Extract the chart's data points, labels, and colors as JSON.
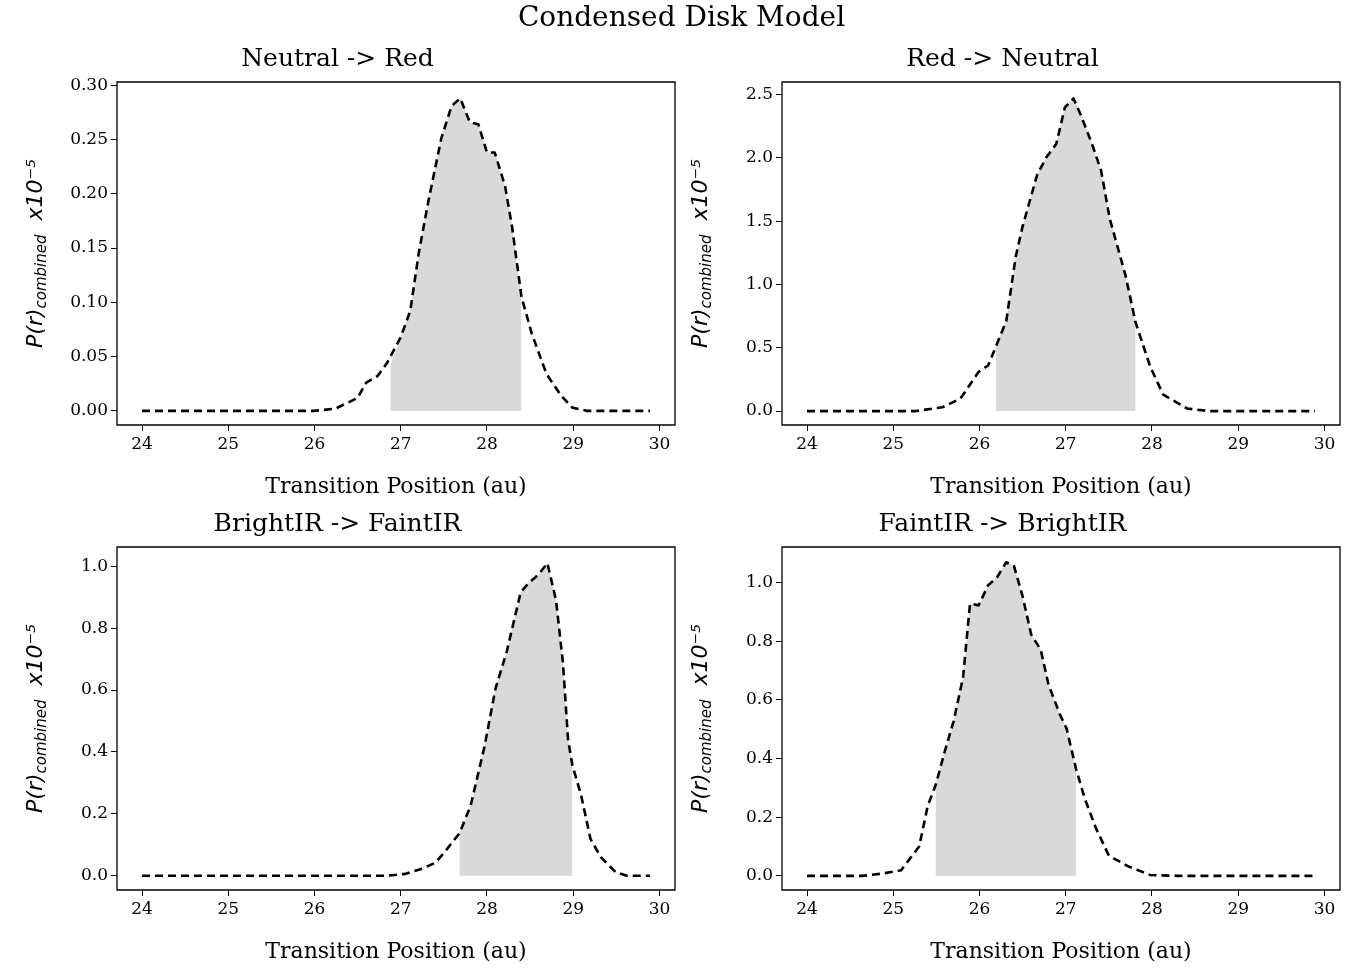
{
  "chart_data": [
    {
      "type": "line",
      "title": "Neutral -> Red",
      "xlabel": "Transition Position (au)",
      "ylabel": "P(r)$_{combined}$  x10⁻⁵",
      "annotations": [
        "Condensed Disk Model"
      ],
      "xlim": [
        23.71,
        30.18
      ],
      "xticks": [
        24,
        25,
        26,
        27,
        28,
        29,
        30
      ],
      "ylim": [
        -0.013,
        0.303
      ],
      "yticks": [
        {
          "value": 0,
          "label": "0.00"
        },
        {
          "value": 0.05,
          "label": "0.05"
        },
        {
          "value": 0.1,
          "label": "0.10"
        },
        {
          "value": 0.15,
          "label": "0.15"
        },
        {
          "value": 0.2,
          "label": "0.20"
        },
        {
          "value": 0.25,
          "label": "0.25"
        },
        {
          "value": 0.3,
          "label": "0.30"
        }
      ],
      "series": [
        {
          "type": "area",
          "color": "#d9d9d9",
          "x": [
            26.88,
            27.0,
            27.11,
            27.21,
            27.32,
            27.47,
            27.59,
            27.69,
            27.8,
            27.9,
            28.0,
            28.09,
            28.21,
            28.29,
            28.4
          ],
          "values": [
            0.042,
            0.068,
            0.092,
            0.146,
            0.193,
            0.251,
            0.281,
            0.288,
            0.266,
            0.264,
            0.238,
            0.238,
            0.207,
            0.17,
            0.105
          ]
        },
        {
          "type": "line",
          "color": "#000000",
          "line_style": "dashed",
          "x": [
            24,
            25.99,
            26.24,
            26.5,
            26.6,
            26.73,
            26.84,
            27.0,
            27.11,
            27.21,
            27.32,
            27.47,
            27.59,
            27.69,
            27.8,
            27.9,
            28.0,
            28.09,
            28.21,
            28.29,
            28.4,
            28.52,
            28.69,
            28.86,
            28.99,
            29.16,
            29.89
          ],
          "values": [
            0,
            0,
            0.002,
            0.012,
            0.026,
            0.032,
            0.044,
            0.068,
            0.092,
            0.146,
            0.193,
            0.251,
            0.281,
            0.288,
            0.266,
            0.264,
            0.238,
            0.238,
            0.207,
            0.17,
            0.105,
            0.071,
            0.034,
            0.014,
            0.003,
            0,
            0
          ]
        }
      ]
    },
    {
      "type": "line",
      "title": "Red -> Neutral",
      "xlabel": "Transition Position (au)",
      "ylabel": "P(r)$_{combined}$  x10⁻⁵",
      "xlim": [
        23.71,
        30.18
      ],
      "xticks": [
        24,
        25,
        26,
        27,
        28,
        29,
        30
      ],
      "ylim": [
        -0.11,
        2.6
      ],
      "yticks": [
        {
          "value": 0,
          "label": "0.0"
        },
        {
          "value": 0.5,
          "label": "0.5"
        },
        {
          "value": 1,
          "label": "1.0"
        },
        {
          "value": 1.5,
          "label": "1.5"
        },
        {
          "value": 2,
          "label": "2.0"
        },
        {
          "value": 2.5,
          "label": "2.5"
        }
      ],
      "series": [
        {
          "type": "area",
          "color": "#d9d9d9",
          "x": [
            26.19,
            26.31,
            26.42,
            26.5,
            26.67,
            26.78,
            26.89,
            26.99,
            27.09,
            27.18,
            27.31,
            27.41,
            27.51,
            27.69,
            27.81
          ],
          "values": [
            0.51,
            0.71,
            1.22,
            1.46,
            1.87,
            2.01,
            2.11,
            2.4,
            2.47,
            2.33,
            2.1,
            1.9,
            1.52,
            1.08,
            0.7
          ]
        },
        {
          "type": "line",
          "color": "#000000",
          "line_style": "dashed",
          "x": [
            24,
            25.26,
            25.57,
            25.78,
            25.99,
            26.1,
            26.19,
            26.31,
            26.42,
            26.5,
            26.67,
            26.78,
            26.89,
            26.99,
            27.09,
            27.18,
            27.31,
            27.41,
            27.51,
            27.69,
            27.81,
            27.98,
            28.13,
            28.41,
            28.66,
            29.89
          ],
          "values": [
            0,
            0,
            0.03,
            0.1,
            0.31,
            0.36,
            0.51,
            0.71,
            1.22,
            1.46,
            1.87,
            2.01,
            2.11,
            2.4,
            2.47,
            2.33,
            2.1,
            1.9,
            1.52,
            1.08,
            0.7,
            0.35,
            0.13,
            0.02,
            0,
            0
          ]
        }
      ]
    },
    {
      "type": "line",
      "title": "BrightIR -> FaintIR",
      "xlabel": "Transition Position (au)",
      "ylabel": "P(r)$_{combined}$  x10⁻⁵",
      "xlim": [
        23.71,
        30.18
      ],
      "xticks": [
        24,
        25,
        26,
        27,
        28,
        29,
        30
      ],
      "ylim": [
        -0.046,
        1.062
      ],
      "yticks": [
        {
          "value": 0,
          "label": "0.0"
        },
        {
          "value": 0.2,
          "label": "0.2"
        },
        {
          "value": 0.4,
          "label": "0.4"
        },
        {
          "value": 0.6,
          "label": "0.6"
        },
        {
          "value": 0.8,
          "label": "0.8"
        },
        {
          "value": 1,
          "label": "1.0"
        }
      ],
      "series": [
        {
          "type": "area",
          "color": "#d9d9d9",
          "x": [
            27.68,
            27.81,
            27.97,
            28.1,
            28.23,
            28.39,
            28.48,
            28.6,
            28.7,
            28.8,
            28.88,
            28.94,
            28.99
          ],
          "values": [
            0.137,
            0.226,
            0.416,
            0.606,
            0.725,
            0.915,
            0.945,
            0.974,
            1.01,
            0.891,
            0.69,
            0.44,
            0.357
          ]
        },
        {
          "type": "line",
          "color": "#000000",
          "line_style": "dashed",
          "x": [
            24,
            26.84,
            27.05,
            27.26,
            27.4,
            27.51,
            27.68,
            27.81,
            27.97,
            28.1,
            28.23,
            28.39,
            28.48,
            28.6,
            28.7,
            28.8,
            28.88,
            28.94,
            28.99,
            29.09,
            29.2,
            29.32,
            29.49,
            29.62,
            29.89
          ],
          "values": [
            0,
            0,
            0.006,
            0.024,
            0.042,
            0.077,
            0.137,
            0.226,
            0.416,
            0.606,
            0.725,
            0.915,
            0.945,
            0.974,
            1.01,
            0.891,
            0.69,
            0.44,
            0.357,
            0.262,
            0.119,
            0.06,
            0.012,
            0,
            0
          ]
        }
      ]
    },
    {
      "type": "line",
      "title": "FaintIR -> BrightIR",
      "xlabel": "Transition Position (au)",
      "ylabel": "P(r)$_{combined}$  x10⁻⁵",
      "xlim": [
        23.71,
        30.18
      ],
      "xticks": [
        24,
        25,
        26,
        27,
        28,
        29,
        30
      ],
      "ylim": [
        -0.048,
        1.121
      ],
      "yticks": [
        {
          "value": 0,
          "label": "0.0"
        },
        {
          "value": 0.2,
          "label": "0.2"
        },
        {
          "value": 0.4,
          "label": "0.4"
        },
        {
          "value": 0.6,
          "label": "0.6"
        },
        {
          "value": 0.8,
          "label": "0.8"
        },
        {
          "value": 1,
          "label": "1.0"
        }
      ],
      "series": [
        {
          "type": "area",
          "color": "#d9d9d9",
          "x": [
            25.49,
            25.6,
            25.7,
            25.81,
            25.89,
            25.99,
            26.1,
            26.2,
            26.31,
            26.4,
            26.5,
            26.6,
            26.71,
            26.8,
            26.93,
            27.01,
            27.12
          ],
          "values": [
            0.308,
            0.427,
            0.527,
            0.678,
            0.928,
            0.922,
            0.991,
            1.016,
            1.069,
            1.056,
            0.953,
            0.822,
            0.771,
            0.652,
            0.552,
            0.502,
            0.364
          ]
        },
        {
          "type": "line",
          "color": "#000000",
          "line_style": "dashed",
          "x": [
            24,
            24.64,
            24.85,
            25.09,
            25.3,
            25.4,
            25.49,
            25.6,
            25.7,
            25.81,
            25.89,
            25.99,
            26.1,
            26.2,
            26.31,
            26.4,
            26.5,
            26.6,
            26.71,
            26.8,
            26.93,
            27.01,
            27.12,
            27.22,
            27.35,
            27.5,
            27.73,
            27.98,
            28.3,
            29.89
          ],
          "values": [
            0,
            0,
            0.007,
            0.019,
            0.1,
            0.239,
            0.308,
            0.427,
            0.527,
            0.678,
            0.928,
            0.922,
            0.991,
            1.016,
            1.069,
            1.056,
            0.953,
            0.822,
            0.771,
            0.652,
            0.552,
            0.502,
            0.364,
            0.264,
            0.163,
            0.069,
            0.032,
            0.003,
            0,
            0
          ]
        }
      ]
    }
  ]
}
